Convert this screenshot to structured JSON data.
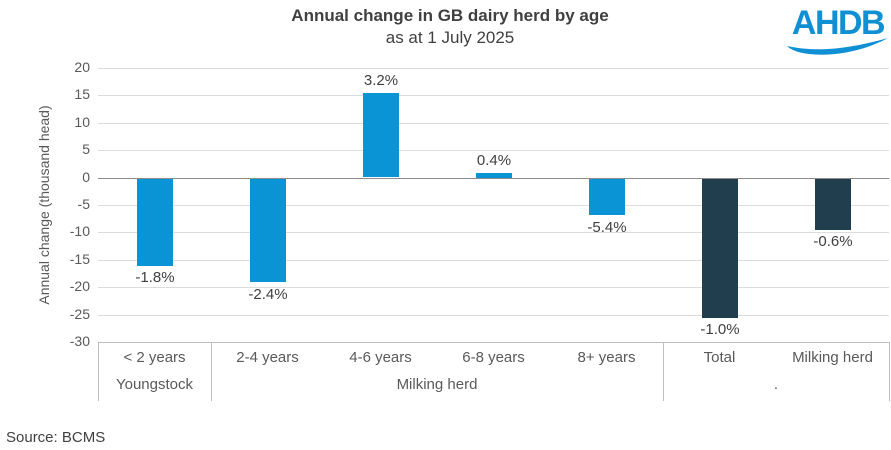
{
  "header": {
    "title": "Annual change in GB dairy herd by age",
    "subtitle": "as at 1 July 2025"
  },
  "logo": {
    "text": "AHDB",
    "color": "#1090D4"
  },
  "source": {
    "label": "Source: BCMS"
  },
  "chart_data": {
    "type": "bar",
    "title": "Annual change in GB dairy herd by age",
    "subtitle": "as at 1 July 2025",
    "xlabel": "",
    "ylabel": "Annual change (thousand head)",
    "ylim": [
      -30,
      20
    ],
    "ytick_step": 5,
    "yticks": [
      20,
      15,
      10,
      5,
      0,
      -5,
      -10,
      -15,
      -20,
      -25,
      -30
    ],
    "grid": "horizontal",
    "legend": "none",
    "categories": [
      "< 2 years",
      "2-4 years",
      "4-6 years",
      "6-8 years",
      "8+ years",
      "Total",
      "Milking herd"
    ],
    "values": [
      -16.0,
      -19.0,
      15.4,
      0.9,
      -6.8,
      -25.5,
      -9.4
    ],
    "bar_labels": [
      "-1.8%",
      "-2.4%",
      "3.2%",
      "0.4%",
      "-5.4%",
      "-1.0%",
      "-0.6%"
    ],
    "bar_colors": [
      "#0A93D5",
      "#0A93D5",
      "#0A93D5",
      "#0A93D5",
      "#0A93D5",
      "#203E4E",
      "#203E4E"
    ],
    "group_axis": [
      {
        "label": "Youngstock",
        "start": 0,
        "end": 0
      },
      {
        "label": "Milking herd",
        "start": 1,
        "end": 4
      },
      {
        "label": ".",
        "start": 5,
        "end": 6
      }
    ],
    "colors": {
      "light_blue": "#0A93D5",
      "dark_slate": "#203E4E",
      "gridline": "#DCDCDC",
      "zero_line": "#8C8C8C",
      "text_gray": "#595959",
      "label_gray": "#404040"
    }
  }
}
